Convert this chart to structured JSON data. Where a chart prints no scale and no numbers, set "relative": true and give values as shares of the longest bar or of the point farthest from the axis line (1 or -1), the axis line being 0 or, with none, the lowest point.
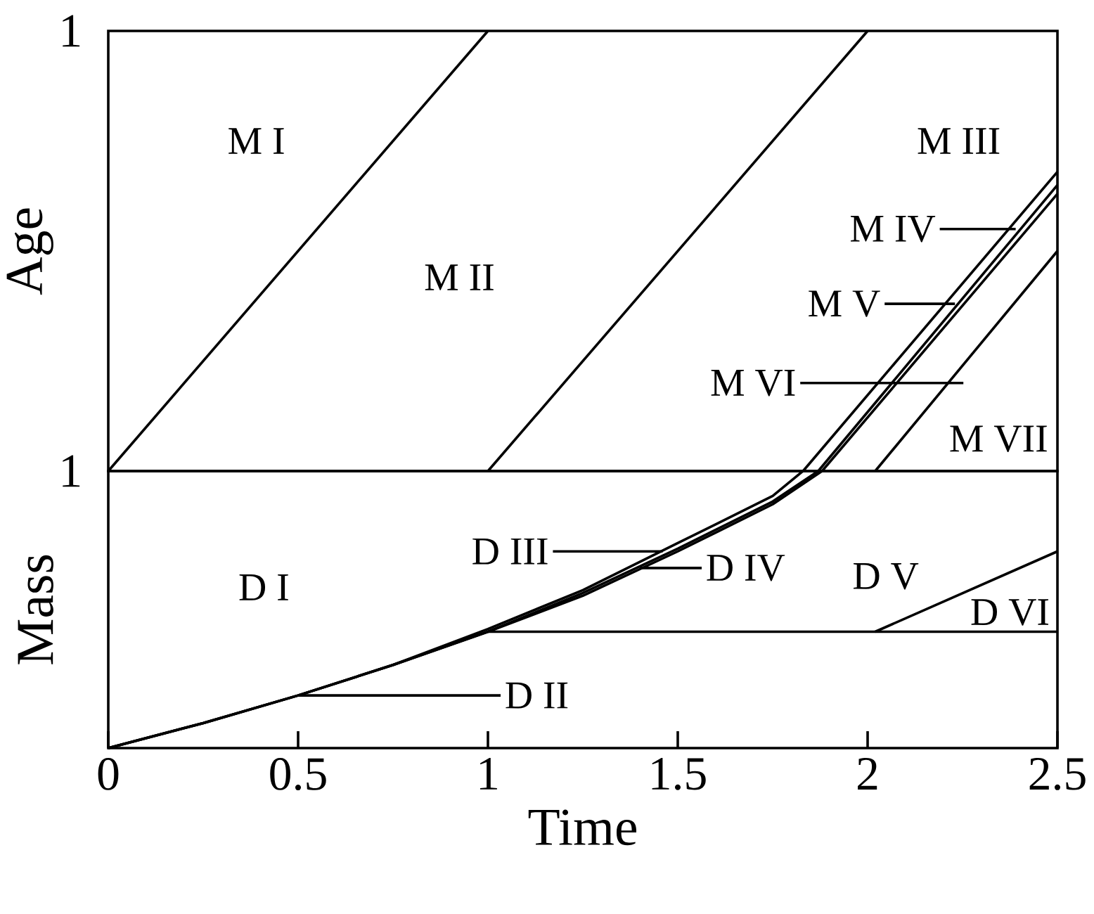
{
  "chart_data": [
    {
      "type": "line",
      "ylabel": "Age",
      "xlim": [
        0,
        2.5
      ],
      "relative": true,
      "tick_labels": false,
      "series": [
        {
          "color": "#000000",
          "x": [
            0,
            1
          ],
          "values": [
            0,
            1
          ]
        },
        {
          "color": "#000000",
          "x": [
            1,
            2
          ],
          "values": [
            0,
            1
          ]
        },
        {
          "color": "#000000",
          "x": [
            1.83,
            2.5
          ],
          "values": [
            0,
            0.68
          ]
        },
        {
          "color": "#000000",
          "x": [
            1.87,
            2.5
          ],
          "values": [
            0,
            0.65
          ]
        },
        {
          "color": "#000000",
          "x": [
            1.88,
            2.5
          ],
          "values": [
            0,
            0.63
          ]
        },
        {
          "color": "#000000",
          "x": [
            2.02,
            2.5
          ],
          "values": [
            0,
            0.5
          ]
        }
      ],
      "annotations": [
        "1",
        "M I",
        "M II",
        "M III",
        {
          "text": "M IV",
          "x": 2.39,
          "y": 0.55
        },
        {
          "text": "M V",
          "x": 2.23,
          "y": 0.38
        },
        {
          "text": "M VI",
          "x": 2.03,
          "y": 0.2
        },
        "M VII"
      ]
    },
    {
      "type": "line",
      "xlabel": "Time",
      "ylabel": "Mass",
      "xlim": [
        0,
        2.5
      ],
      "relative": true,
      "tick_labels": "x",
      "xticks": [
        0,
        0.5,
        1,
        1.5,
        2,
        2.5
      ],
      "series": [
        {
          "color": "#000000",
          "x": [
            0,
            0.25,
            0.5,
            0.75,
            1.0,
            1.25,
            1.5,
            1.75,
            1.83
          ],
          "values": [
            0,
            0.09,
            0.19,
            0.3,
            0.43,
            0.57,
            0.74,
            0.91,
            1
          ]
        },
        {
          "color": "#000000",
          "x": [
            0,
            0.25,
            0.5,
            0.75,
            1.0,
            1.25,
            1.5,
            1.75,
            1.87
          ],
          "values": [
            0,
            0.09,
            0.19,
            0.3,
            0.42,
            0.56,
            0.72,
            0.89,
            1
          ]
        },
        {
          "color": "#000000",
          "x": [
            0,
            0.25,
            0.5,
            0.75,
            1.0,
            1.25,
            1.5,
            1.75,
            1.88
          ],
          "values": [
            0,
            0.09,
            0.19,
            0.3,
            0.42,
            0.55,
            0.71,
            0.88,
            1
          ]
        },
        {
          "color": "#000000",
          "x": [
            1.0,
            2.5
          ],
          "values": [
            0.42,
            0.42
          ]
        },
        {
          "color": "#000000",
          "x": [
            2.02,
            2.5
          ],
          "values": [
            0.42,
            0.71
          ]
        }
      ],
      "annotations": [
        "1",
        "D I",
        {
          "text": "D II",
          "x": 0.5,
          "y": 0.19
        },
        {
          "text": "D III",
          "x": 1.46,
          "y": 0.71
        },
        {
          "text": "D IV",
          "x": 1.4,
          "y": 0.65
        },
        "D V",
        "D VI"
      ]
    }
  ]
}
